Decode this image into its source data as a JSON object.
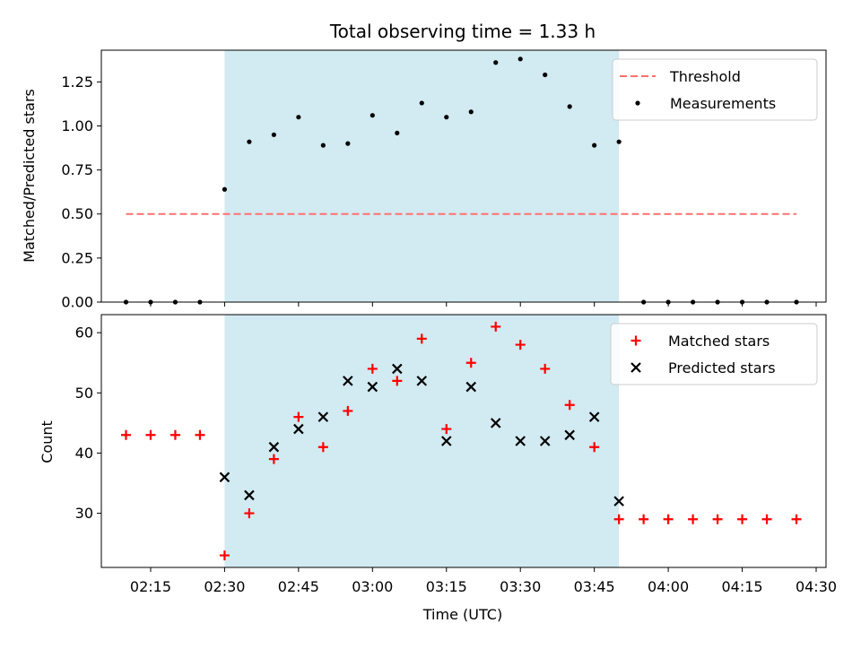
{
  "chart_data": {
    "title": "Total observing time = 1.33 h",
    "xlabel": "Time (UTC)",
    "x_tick_labels": [
      "02:15",
      "02:30",
      "02:45",
      "03:00",
      "03:15",
      "03:30",
      "03:45",
      "04:00",
      "04:15",
      "04:30"
    ],
    "x_tick_minutes": [
      135,
      150,
      165,
      180,
      195,
      210,
      225,
      240,
      255,
      270
    ],
    "xlim_minutes": [
      125,
      272
    ],
    "observing_window_minutes": [
      150,
      230
    ],
    "observing_window_color": "#add8e6",
    "panels": [
      {
        "type": "scatter",
        "ylabel": "Matched/Predicted stars",
        "ylim": [
          0,
          1.43
        ],
        "y_ticks": [
          0,
          0.25,
          0.5,
          0.75,
          1.0,
          1.25
        ],
        "y_tick_labels": [
          "0.00",
          "0.25",
          "0.50",
          "0.75",
          "1.00",
          "1.25"
        ],
        "legend_position": "top-right",
        "threshold": {
          "name": "Threshold",
          "value": 0.5,
          "x_range": [
            130,
            266
          ],
          "color": "#ff7070"
        },
        "series": [
          {
            "name": "Measurements",
            "marker": "dot",
            "color": "#000000",
            "x": [
              130,
              135,
              140,
              145,
              150,
              155,
              160,
              165,
              170,
              175,
              180,
              185,
              190,
              195,
              200,
              205,
              210,
              215,
              220,
              225,
              230,
              235,
              240,
              245,
              250,
              255,
              260,
              266
            ],
            "y": [
              0,
              0,
              0,
              0,
              0.64,
              0.91,
              0.95,
              1.05,
              0.89,
              0.9,
              1.06,
              0.96,
              1.13,
              1.05,
              1.08,
              1.36,
              1.38,
              1.29,
              1.11,
              0.89,
              0.91,
              0,
              0,
              0,
              0,
              0,
              0,
              0
            ]
          }
        ]
      },
      {
        "type": "scatter",
        "ylabel": "Count",
        "ylim": [
          21,
          63
        ],
        "y_ticks": [
          30,
          40,
          50,
          60
        ],
        "y_tick_labels": [
          "30",
          "40",
          "50",
          "60"
        ],
        "legend_position": "top-right",
        "series": [
          {
            "name": "Matched stars",
            "marker": "plus",
            "color": "#ff0000",
            "x": [
              130,
              135,
              140,
              145,
              150,
              155,
              160,
              165,
              170,
              175,
              180,
              185,
              190,
              195,
              200,
              205,
              210,
              215,
              220,
              225,
              230,
              235,
              240,
              245,
              250,
              255,
              260,
              266
            ],
            "y": [
              43,
              43,
              43,
              43,
              23,
              30,
              39,
              46,
              41,
              47,
              54,
              52,
              59,
              44,
              55,
              61,
              58,
              54,
              48,
              41,
              29,
              29,
              29,
              29,
              29,
              29,
              29,
              29
            ]
          },
          {
            "name": "Predicted stars",
            "marker": "x",
            "color": "#000000",
            "x": [
              150,
              155,
              160,
              165,
              170,
              175,
              180,
              185,
              190,
              195,
              200,
              205,
              210,
              215,
              220,
              225,
              230
            ],
            "y": [
              36,
              33,
              41,
              44,
              46,
              52,
              51,
              54,
              52,
              42,
              51,
              45,
              42,
              42,
              43,
              46,
              32
            ]
          }
        ]
      }
    ]
  }
}
